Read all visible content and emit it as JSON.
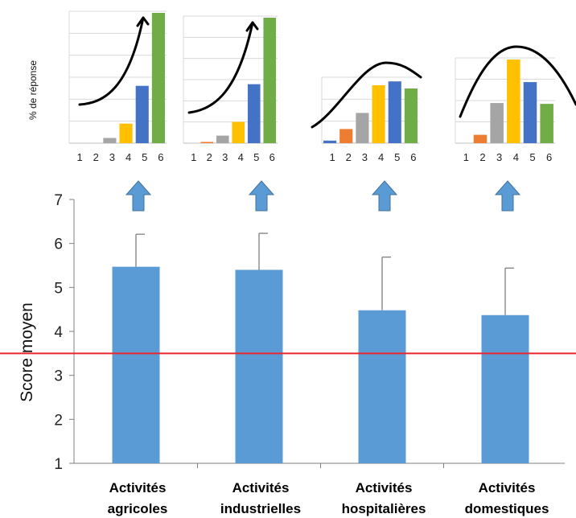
{
  "chart_data": [
    {
      "type": "bar",
      "role": "main",
      "ylabel": "Score moyen",
      "ylim": [
        1,
        7
      ],
      "yticks": [
        "1",
        "2",
        "3",
        "4",
        "5",
        "6",
        "7"
      ],
      "categories": [
        [
          "Activités",
          "agricoles"
        ],
        [
          "Activités",
          "industrielles"
        ],
        [
          "Activités",
          "hospitalières"
        ],
        [
          "Activités",
          "domestiques"
        ]
      ],
      "values": [
        5.47,
        5.4,
        4.48,
        4.37
      ],
      "error_upper": [
        6.21,
        6.23,
        5.69,
        5.44
      ],
      "reference_line": 3.5,
      "colors": {
        "bar": "#5b9bd5",
        "error": "#7f7f7f",
        "reference": "#e8262b",
        "arrow": "#5b9bd5"
      }
    },
    {
      "type": "bar",
      "role": "inset-agricoles",
      "ylabel": "% de réponse",
      "categories": [
        "1",
        "2",
        "3",
        "4",
        "5",
        "6"
      ],
      "values": [
        0,
        0,
        4,
        15,
        44,
        100
      ],
      "trend": "rising",
      "colors": [
        "#4472c4",
        "#ed7d31",
        "#a5a5a5",
        "#ffc000",
        "#4472c4",
        "#70ad47"
      ]
    },
    {
      "type": "bar",
      "role": "inset-industrielles",
      "categories": [
        "1",
        "2",
        "3",
        "4",
        "5",
        "6"
      ],
      "values": [
        0,
        1,
        6,
        17,
        47,
        100
      ],
      "trend": "rising",
      "colors": [
        "#4472c4",
        "#ed7d31",
        "#a5a5a5",
        "#ffc000",
        "#4472c4",
        "#70ad47"
      ]
    },
    {
      "type": "bar",
      "role": "inset-hospitalieres",
      "categories": [
        "1",
        "2",
        "3",
        "4",
        "5",
        "6"
      ],
      "values": [
        4,
        22,
        47,
        90,
        96,
        85
      ],
      "trend": "peaked",
      "colors": [
        "#4472c4",
        "#ed7d31",
        "#a5a5a5",
        "#ffc000",
        "#4472c4",
        "#70ad47"
      ]
    },
    {
      "type": "bar",
      "role": "inset-domestiques",
      "categories": [
        "1",
        "2",
        "3",
        "4",
        "5",
        "6"
      ],
      "values": [
        0,
        10,
        48,
        100,
        73,
        47
      ],
      "trend": "peaked",
      "colors": [
        "#4472c4",
        "#ed7d31",
        "#a5a5a5",
        "#ffc000",
        "#4472c4",
        "#70ad47"
      ]
    }
  ]
}
